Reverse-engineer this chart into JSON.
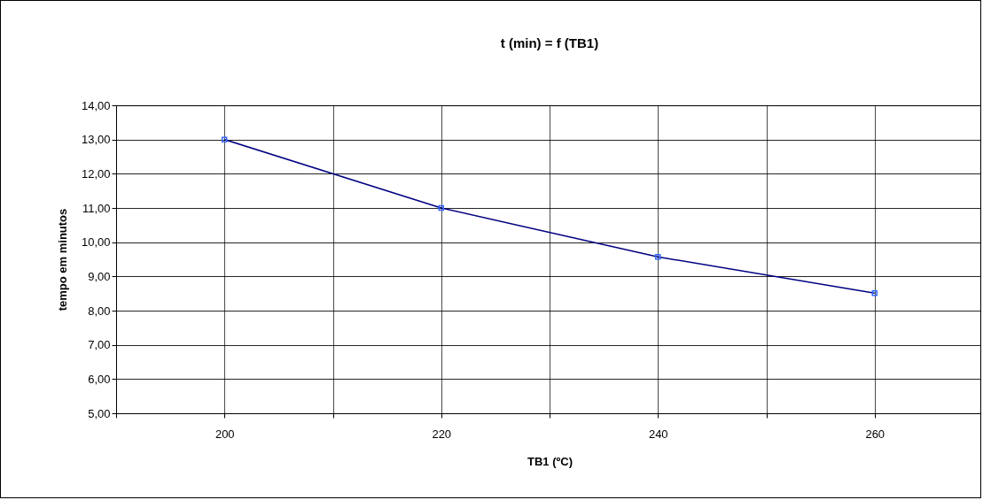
{
  "chart_data": {
    "type": "line",
    "title": "t (min) = f (TB1)",
    "xlabel": "TB1 (ºC)",
    "ylabel": "tempo em minutos",
    "x": [
      200,
      220,
      240,
      260
    ],
    "series": [
      {
        "color": "#000080",
        "values": [
          13.0,
          11.0,
          9.57,
          8.51
        ]
      }
    ],
    "xlim": [
      190,
      270
    ],
    "xticks": [
      {
        "value": 190,
        "label": null
      },
      200,
      {
        "value": 210,
        "label": null
      },
      220,
      {
        "value": 230,
        "label": null
      },
      240,
      {
        "value": 250,
        "label": null
      },
      260,
      {
        "value": 270,
        "label": null
      }
    ],
    "ylim": [
      5,
      14
    ],
    "yticks": [
      {
        "value": 5,
        "label": "5,00"
      },
      {
        "value": 6,
        "label": "6,00"
      },
      {
        "value": 7,
        "label": "7,00"
      },
      {
        "value": 8,
        "label": "8,00"
      },
      {
        "value": 9,
        "label": "9,00"
      },
      {
        "value": 10,
        "label": "10,00"
      },
      {
        "value": 11,
        "label": "11,00"
      },
      {
        "value": 12,
        "label": "12,00"
      },
      {
        "value": 13,
        "label": "13,00"
      },
      {
        "value": 14,
        "label": "14,00"
      }
    ],
    "grid": true,
    "marker": "square",
    "line_style": "solid"
  }
}
